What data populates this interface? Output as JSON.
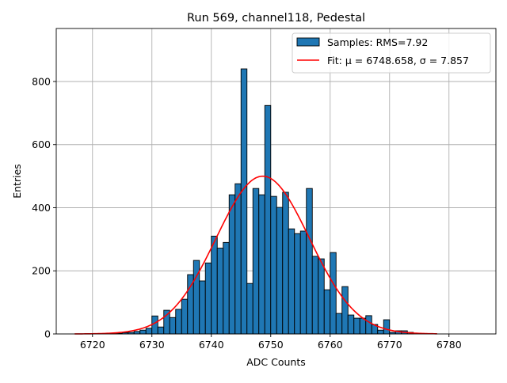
{
  "chart_data": {
    "type": "bar",
    "title": "Run 569, channel118, Pedestal",
    "xlabel": "ADC Counts",
    "ylabel": "Entries",
    "xlim": [
      6713.9,
      6787.9
    ],
    "ylim": [
      0,
      968
    ],
    "xticks": [
      6720,
      6730,
      6740,
      6750,
      6760,
      6770,
      6780
    ],
    "yticks": [
      0,
      200,
      400,
      600,
      800
    ],
    "grid": true,
    "legend_position": "top-right",
    "bin_width": 1,
    "histogram": {
      "name": "Samples: RMS=7.92",
      "color": "#1f77b4",
      "edge_color": "#000000",
      "bin_starts": [
        6723,
        6724,
        6725,
        6726,
        6727,
        6728,
        6729,
        6730,
        6731,
        6732,
        6733,
        6734,
        6735,
        6736,
        6737,
        6738,
        6739,
        6740,
        6741,
        6742,
        6743,
        6744,
        6745,
        6746,
        6747,
        6748,
        6749,
        6750,
        6751,
        6752,
        6753,
        6754,
        6755,
        6756,
        6757,
        6758,
        6759,
        6760,
        6761,
        6762,
        6763,
        6764,
        6765,
        6766,
        6767,
        6768,
        6769,
        6770,
        6771,
        6772,
        6773
      ],
      "values": [
        1,
        2,
        4,
        5,
        8,
        12,
        18,
        57,
        22,
        75,
        52,
        78,
        110,
        188,
        233,
        168,
        225,
        310,
        272,
        290,
        441,
        476,
        840,
        160,
        461,
        441,
        724,
        436,
        401,
        449,
        333,
        318,
        326,
        461,
        246,
        238,
        140,
        258,
        65,
        150,
        60,
        50,
        50,
        58,
        30,
        12,
        45,
        5,
        10,
        10,
        5
      ]
    },
    "fit": {
      "name": "Fit: μ = 6748.658, σ = 7.857",
      "color": "#ff0000",
      "mu": 6748.658,
      "sigma": 7.857,
      "amplitude": 500,
      "x_range": [
        6717,
        6778
      ]
    }
  }
}
